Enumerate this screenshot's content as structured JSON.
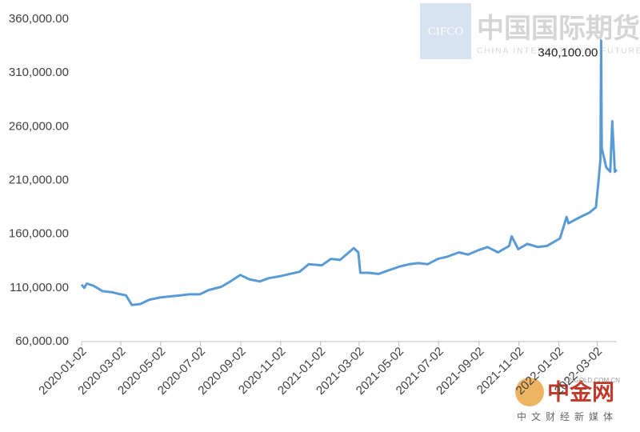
{
  "chart_data": {
    "type": "line",
    "x": [
      "2020-01-02",
      "2020-01-06",
      "2020-01-10",
      "2020-01-20",
      "2020-02-03",
      "2020-02-17",
      "2020-03-02",
      "2020-03-10",
      "2020-03-19",
      "2020-04-01",
      "2020-04-15",
      "2020-05-01",
      "2020-05-15",
      "2020-06-01",
      "2020-06-15",
      "2020-07-01",
      "2020-07-15",
      "2020-08-03",
      "2020-08-17",
      "2020-09-01",
      "2020-09-15",
      "2020-10-01",
      "2020-10-15",
      "2020-11-02",
      "2020-11-16",
      "2020-12-01",
      "2020-12-15",
      "2021-01-04",
      "2021-01-18",
      "2021-02-01",
      "2021-02-22",
      "2021-03-01",
      "2021-03-04",
      "2021-03-16",
      "2021-04-01",
      "2021-04-15",
      "2021-05-04",
      "2021-05-18",
      "2021-06-01",
      "2021-06-15",
      "2021-07-01",
      "2021-07-15",
      "2021-08-02",
      "2021-08-16",
      "2021-09-01",
      "2021-09-15",
      "2021-10-01",
      "2021-10-18",
      "2021-10-22",
      "2021-11-01",
      "2021-11-15",
      "2021-12-01",
      "2021-12-15",
      "2022-01-04",
      "2022-01-14",
      "2022-01-17",
      "2022-02-01",
      "2022-02-18",
      "2022-02-28",
      "2022-03-04",
      "2022-03-07",
      "2022-03-08",
      "2022-03-09",
      "2022-03-16",
      "2022-03-22",
      "2022-03-25",
      "2022-03-29",
      "2022-04-01"
    ],
    "series": [
      {
        "color": "#5b9bd5",
        "values": [
          113000,
          110000,
          114000,
          112000,
          107000,
          106000,
          104000,
          103000,
          94000,
          95000,
          99000,
          101000,
          102000,
          103000,
          104000,
          104000,
          108000,
          111000,
          116000,
          122000,
          118000,
          116000,
          119000,
          121000,
          123000,
          125000,
          132000,
          131000,
          137000,
          136000,
          147000,
          143000,
          124000,
          124000,
          123000,
          126000,
          130000,
          132000,
          133000,
          132000,
          137000,
          139000,
          143000,
          141000,
          145000,
          148000,
          143000,
          149000,
          158000,
          146000,
          151000,
          148000,
          149000,
          156000,
          176000,
          170000,
          175000,
          180000,
          185000,
          210000,
          230000,
          340100,
          240000,
          222000,
          218000,
          265000,
          218000,
          220000
        ]
      }
    ],
    "xlim": [
      "2020-01-02",
      "2022-04-01"
    ],
    "xticks": [
      "2020-01-02",
      "2020-03-02",
      "2020-05-02",
      "2020-07-02",
      "2020-09-02",
      "2020-11-02",
      "2021-01-02",
      "2021-03-02",
      "2021-05-02",
      "2021-07-02",
      "2021-09-02",
      "2021-11-02",
      "2022-01-02",
      "2022-03-02"
    ],
    "ylim": [
      60000,
      360000
    ],
    "yticks": [
      {
        "value": 60000,
        "label": "60,000.00"
      },
      {
        "value": 110000,
        "label": "110,000.00"
      },
      {
        "value": 160000,
        "label": "160,000.00"
      },
      {
        "value": 210000,
        "label": "210,000.00"
      },
      {
        "value": 260000,
        "label": "260,000.00"
      },
      {
        "value": 310000,
        "label": "310,000.00"
      },
      {
        "value": 360000,
        "label": "360,000.00"
      }
    ],
    "peak_label": {
      "x": "2022-03-08",
      "value": 340100,
      "label": "340,100.00"
    }
  },
  "watermarks": {
    "cifco": "CIFCO",
    "cifco_cn": "中国国际期货",
    "cifco_en": "CHINA INTERNATIONAL FUTURES",
    "cngold_cn": "中金网",
    "cngold_sub": "中文财经新媒体",
    "cngold_url": "CNGOLD.COM.CN"
  }
}
